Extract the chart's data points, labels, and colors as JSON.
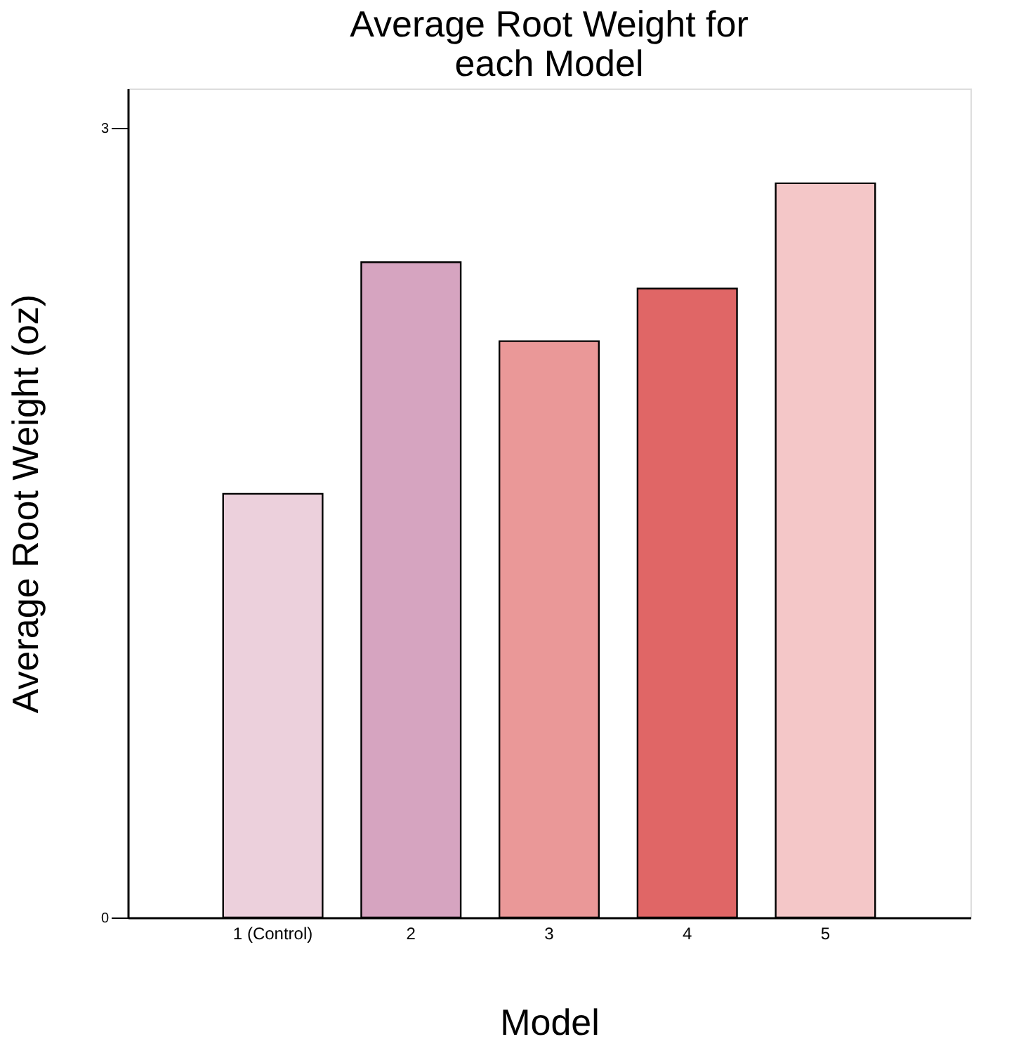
{
  "chart_data": {
    "type": "bar",
    "title": "Average Root Weight for each Model",
    "xlabel": "Model",
    "ylabel": "Average Root Weight (oz)",
    "categories": [
      "1 (Control)",
      "2",
      "3",
      "4",
      "5"
    ],
    "values": [
      1.61,
      2.49,
      2.19,
      2.39,
      2.79
    ],
    "colors": [
      "#ecd0dc",
      "#d6a4c0",
      "#ea9898",
      "#e06666",
      "#f4c7c8"
    ],
    "ylim": [
      0,
      3.15
    ],
    "yticks": [
      0,
      3
    ],
    "grid": false,
    "legend": false
  }
}
